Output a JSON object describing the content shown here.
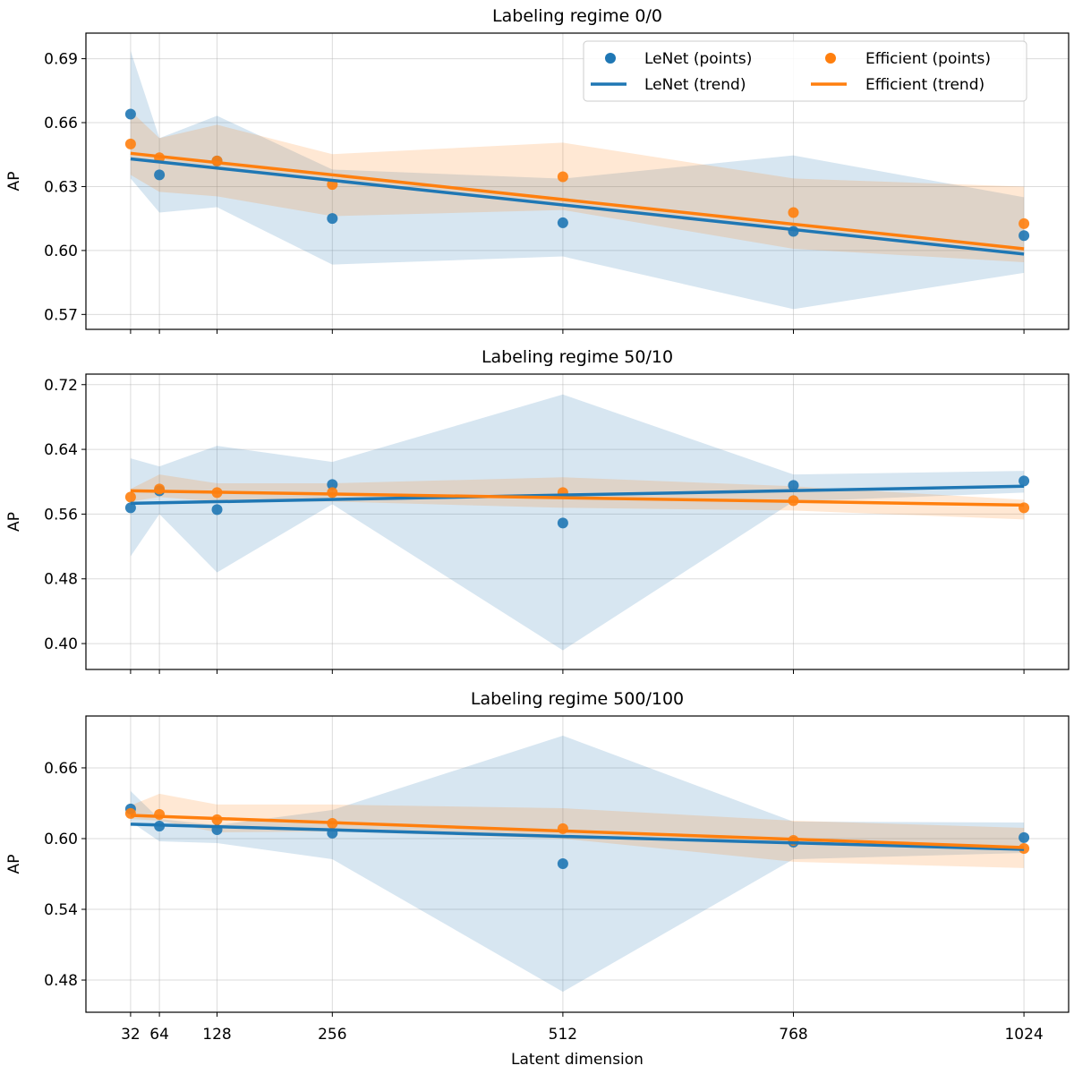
{
  "chart_data": [
    {
      "type": "scatter",
      "title": "Labeling regime 0/0",
      "xlabel": "",
      "ylabel": "AP",
      "x": [
        32,
        64,
        128,
        256,
        512,
        768,
        1024
      ],
      "xlim": [
        -17.6,
        1073.6
      ],
      "ylim": [
        0.563,
        0.702
      ],
      "yticks": [
        0.57,
        0.6,
        0.63,
        0.66,
        0.69
      ],
      "ytick_labels": [
        "0.57",
        "0.60",
        "0.63",
        "0.66",
        "0.69"
      ],
      "grid": true,
      "legend": "top-right",
      "series": [
        {
          "name": "LeNet (points)",
          "color": "#1f77b4",
          "values": [
            0.664,
            0.6355,
            0.642,
            0.615,
            0.613,
            0.609,
            0.607
          ],
          "trend": [
            0.643,
            0.5983
          ],
          "band_upper": [
            0.6937,
            0.6527,
            0.6632,
            0.638,
            0.6337,
            0.6446,
            0.625
          ],
          "band_lower": [
            0.6338,
            0.6178,
            0.6203,
            0.5934,
            0.5972,
            0.5725,
            0.5895
          ]
        },
        {
          "name": "Efficient (points)",
          "color": "#ff7f0e",
          "values": [
            0.65,
            0.6435,
            0.642,
            0.631,
            0.6346,
            0.6178,
            0.6126
          ],
          "trend": [
            0.6456,
            0.6008
          ],
          "band_upper": [
            0.6655,
            0.6527,
            0.659,
            0.6452,
            0.6506,
            0.6338,
            0.63
          ],
          "band_lower": [
            0.6355,
            0.6275,
            0.6254,
            0.6161,
            0.619,
            0.6008,
            0.5945
          ]
        }
      ]
    },
    {
      "type": "scatter",
      "title": "Labeling regime 50/10",
      "xlabel": "",
      "ylabel": "AP",
      "x": [
        32,
        64,
        128,
        256,
        512,
        768,
        1024
      ],
      "xlim": [
        -17.6,
        1073.6
      ],
      "ylim": [
        0.368,
        0.733
      ],
      "yticks": [
        0.4,
        0.48,
        0.56,
        0.64,
        0.72
      ],
      "ytick_labels": [
        "0.40",
        "0.48",
        "0.56",
        "0.64",
        "0.72"
      ],
      "grid": true,
      "series": [
        {
          "name": "LeNet (points)",
          "color": "#1f77b4",
          "values": [
            0.5678,
            0.5888,
            0.5656,
            0.5966,
            0.549,
            0.5955,
            0.601
          ],
          "trend": [
            0.5733,
            0.5944
          ],
          "band_upper": [
            0.6289,
            0.619,
            0.6444,
            0.6245,
            0.7078,
            0.609,
            0.6134
          ],
          "band_lower": [
            0.5078,
            0.56,
            0.4879,
            0.5722,
            0.3917,
            0.5755,
            0.5866
          ]
        },
        {
          "name": "Efficient (points)",
          "color": "#ff7f0e",
          "values": [
            0.581,
            0.591,
            0.5866,
            0.5866,
            0.5866,
            0.5766,
            0.5678
          ],
          "trend": [
            0.5888,
            0.5711
          ],
          "band_upper": [
            0.591,
            0.609,
            0.598,
            0.598,
            0.6055,
            0.5944,
            0.5777
          ],
          "band_lower": [
            0.5755,
            0.581,
            0.5755,
            0.5755,
            0.5678,
            0.5644,
            0.5534
          ]
        }
      ]
    },
    {
      "type": "scatter",
      "title": "Labeling regime 500/100",
      "xlabel": "Latent dimension",
      "ylabel": "AP",
      "x": [
        32,
        64,
        128,
        256,
        512,
        768,
        1024
      ],
      "xtick_labels": [
        "32",
        "64",
        "128",
        "256",
        "512",
        "768",
        "1024"
      ],
      "xlim": [
        -17.6,
        1073.6
      ],
      "ylim": [
        0.4527,
        0.704
      ],
      "yticks": [
        0.48,
        0.54,
        0.6,
        0.66
      ],
      "ytick_labels": [
        "0.48",
        "0.54",
        "0.60",
        "0.66"
      ],
      "grid": true,
      "series": [
        {
          "name": "LeNet (points)",
          "color": "#1f77b4",
          "values": [
            0.6251,
            0.6106,
            0.6076,
            0.6046,
            0.5787,
            0.597,
            0.6008
          ],
          "trend": [
            0.6122,
            0.5909
          ],
          "band_upper": [
            0.6403,
            0.6167,
            0.6114,
            0.6243,
            0.6873,
            0.6144,
            0.6137
          ],
          "band_lower": [
            0.6144,
            0.5977,
            0.5962,
            0.5825,
            0.4701,
            0.5825,
            0.5878
          ]
        },
        {
          "name": "Efficient (points)",
          "color": "#ff7f0e",
          "values": [
            0.6213,
            0.6205,
            0.616,
            0.6129,
            0.6084,
            0.5985,
            0.5916
          ],
          "trend": [
            0.6197,
            0.5924
          ],
          "band_upper": [
            0.6281,
            0.638,
            0.6289,
            0.6289,
            0.6258,
            0.6152,
            0.6091
          ],
          "band_lower": [
            0.6167,
            0.6152,
            0.6053,
            0.6061,
            0.6,
            0.5803,
            0.575
          ]
        }
      ]
    }
  ],
  "legend": {
    "entries": [
      {
        "label": "LeNet (points)",
        "kind": "marker",
        "color": "#1f77b4"
      },
      {
        "label": "Efficient (points)",
        "kind": "marker",
        "color": "#ff7f0e"
      },
      {
        "label": "LeNet (trend)",
        "kind": "line",
        "color": "#1f77b4"
      },
      {
        "label": "Efficient (trend)",
        "kind": "line",
        "color": "#ff7f0e"
      }
    ]
  }
}
